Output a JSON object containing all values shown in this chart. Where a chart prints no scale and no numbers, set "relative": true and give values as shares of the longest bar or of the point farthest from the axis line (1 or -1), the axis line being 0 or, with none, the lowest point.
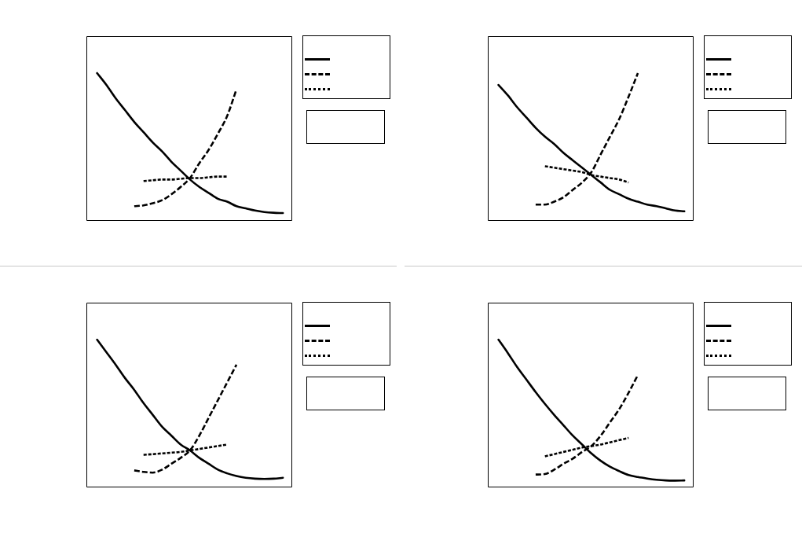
{
  "chart_data": [
    {
      "type": "line",
      "relative": true,
      "categories": [
        null,
        null,
        null,
        null,
        null,
        null,
        null,
        null,
        null,
        null,
        null,
        null,
        null,
        null,
        null,
        null,
        null,
        null,
        null,
        null,
        null
      ],
      "series": [
        {
          "color": "#000000",
          "line_style": "solid",
          "values": [
            1,
            0.92,
            0.83,
            0.75,
            0.67,
            0.6,
            0.53,
            0.47,
            0.4,
            0.34,
            0.28,
            0.23,
            0.19,
            0.15,
            0.13,
            0.1,
            0.085,
            0.07,
            0.06,
            0.055,
            0.053
          ]
        },
        {
          "color": "#000000",
          "line_style": "dashed",
          "values": [
            null,
            null,
            null,
            null,
            0.1,
            0.105,
            0.12,
            0.14,
            0.18,
            0.23,
            0.29,
            0.39,
            0.48,
            0.59,
            0.71,
            0.89,
            null,
            null,
            null,
            null,
            null
          ]
        },
        {
          "color": "#000000",
          "line_style": "dotted",
          "values": [
            null,
            null,
            null,
            null,
            null,
            0.27,
            0.275,
            0.28,
            0.28,
            0.285,
            0.29,
            0.29,
            0.295,
            0.3,
            0.3,
            null,
            null,
            null,
            null,
            null,
            null
          ]
        }
      ]
    },
    {
      "type": "line",
      "relative": true,
      "categories": [
        null,
        null,
        null,
        null,
        null,
        null,
        null,
        null,
        null,
        null,
        null,
        null,
        null,
        null,
        null,
        null,
        null,
        null,
        null,
        null,
        null
      ],
      "series": [
        {
          "color": "#000000",
          "line_style": "solid",
          "values": [
            0.92,
            0.85,
            0.77,
            0.7,
            0.63,
            0.57,
            0.52,
            0.46,
            0.41,
            0.36,
            0.31,
            0.26,
            0.21,
            0.18,
            0.15,
            0.13,
            0.11,
            0.1,
            0.085,
            0.07,
            0.065
          ]
        },
        {
          "color": "#000000",
          "line_style": "dashed",
          "values": [
            null,
            null,
            null,
            null,
            0.11,
            0.11,
            0.13,
            0.16,
            0.21,
            0.26,
            0.33,
            0.45,
            0.57,
            0.69,
            0.84,
            1,
            null,
            null,
            null,
            null,
            null
          ]
        },
        {
          "color": "#000000",
          "line_style": "dotted",
          "values": [
            null,
            null,
            null,
            null,
            null,
            0.37,
            0.36,
            0.35,
            0.34,
            0.33,
            0.31,
            0.3,
            0.29,
            0.28,
            0.26,
            null,
            null,
            null,
            null,
            null,
            null
          ]
        }
      ]
    },
    {
      "type": "line",
      "relative": true,
      "categories": [
        null,
        null,
        null,
        null,
        null,
        null,
        null,
        null,
        null,
        null,
        null,
        null,
        null,
        null,
        null,
        null,
        null,
        null,
        null,
        null,
        null
      ],
      "series": [
        {
          "color": "#000000",
          "line_style": "solid",
          "values": [
            1,
            0.915,
            0.83,
            0.74,
            0.66,
            0.57,
            0.49,
            0.41,
            0.35,
            0.29,
            0.25,
            0.2,
            0.16,
            0.12,
            0.095,
            0.077,
            0.065,
            0.059,
            0.057,
            0.059,
            0.065
          ]
        },
        {
          "color": "#000000",
          "line_style": "dashed",
          "values": [
            null,
            null,
            null,
            null,
            0.115,
            0.105,
            0.1,
            0.12,
            0.16,
            0.2,
            0.25,
            0.35,
            0.47,
            0.59,
            0.71,
            0.83,
            null,
            null,
            null,
            null,
            null
          ]
        },
        {
          "color": "#000000",
          "line_style": "dotted",
          "values": [
            null,
            null,
            null,
            null,
            null,
            0.22,
            0.225,
            0.23,
            0.235,
            0.24,
            0.25,
            0.26,
            0.27,
            0.28,
            0.29,
            null,
            null,
            null,
            null,
            null,
            null
          ]
        }
      ]
    },
    {
      "type": "line",
      "relative": true,
      "categories": [
        null,
        null,
        null,
        null,
        null,
        null,
        null,
        null,
        null,
        null,
        null,
        null,
        null,
        null,
        null,
        null,
        null,
        null,
        null,
        null,
        null
      ],
      "series": [
        {
          "color": "#000000",
          "line_style": "solid",
          "values": [
            1,
            0.91,
            0.815,
            0.73,
            0.645,
            0.565,
            0.49,
            0.42,
            0.35,
            0.29,
            0.23,
            0.18,
            0.14,
            0.11,
            0.084,
            0.07,
            0.06,
            0.052,
            0.047,
            0.046,
            0.047
          ]
        },
        {
          "color": "#000000",
          "line_style": "dashed",
          "values": [
            null,
            null,
            null,
            null,
            0.087,
            0.09,
            0.12,
            0.16,
            0.195,
            0.24,
            0.28,
            0.35,
            0.44,
            0.53,
            0.64,
            0.76,
            null,
            null,
            null,
            null,
            null
          ]
        },
        {
          "color": "#000000",
          "line_style": "dotted",
          "values": [
            null,
            null,
            null,
            null,
            null,
            0.21,
            0.225,
            0.24,
            0.255,
            0.27,
            0.28,
            0.29,
            0.305,
            0.32,
            0.335,
            null,
            null,
            null,
            null,
            null,
            null
          ]
        }
      ]
    }
  ]
}
